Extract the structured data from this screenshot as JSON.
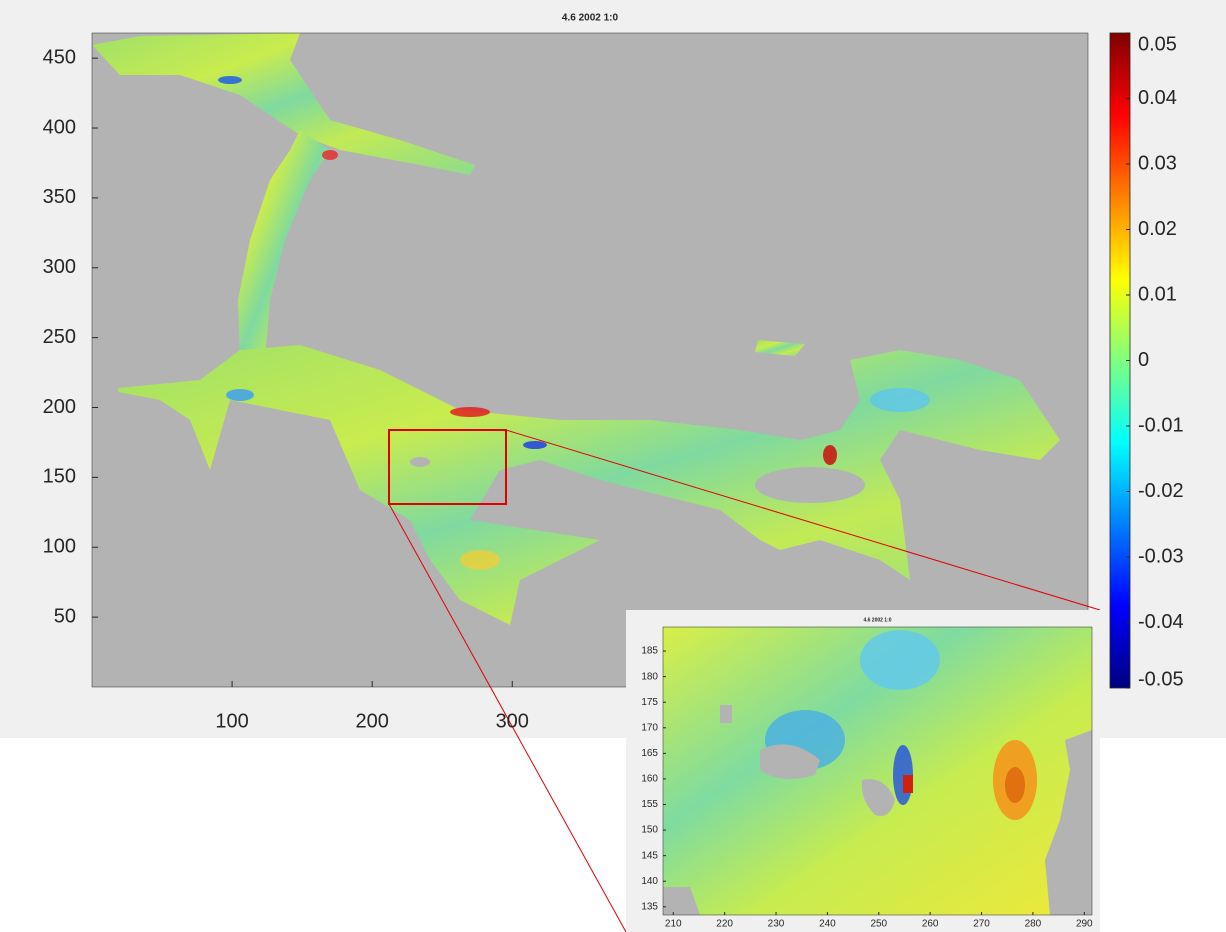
{
  "chart_data": [
    {
      "type": "heatmap",
      "title": "4.6 2002 1:0",
      "xlim": [
        0,
        711
      ],
      "ylim": [
        0,
        468
      ],
      "xticks": [
        100,
        200,
        300
      ],
      "yticks": [
        50,
        100,
        150,
        200,
        250,
        300,
        350,
        400,
        450
      ],
      "clim": [
        -0.05,
        0.05
      ],
      "colorbar_ticks": [
        0.05,
        0.04,
        0.03,
        0.02,
        0.01,
        0,
        -0.01,
        -0.02,
        -0.03,
        -0.04,
        -0.05
      ]
    },
    {
      "type": "heatmap",
      "title": "4.6 2002 1:0",
      "xlim": [
        208,
        291.5
      ],
      "ylim": [
        133.4,
        189.7
      ],
      "xticks": [
        210,
        220,
        230,
        240,
        250,
        260,
        270,
        280,
        290
      ],
      "yticks": [
        135,
        140,
        145,
        150,
        155,
        160,
        165,
        170,
        175,
        180,
        185
      ]
    }
  ]
}
